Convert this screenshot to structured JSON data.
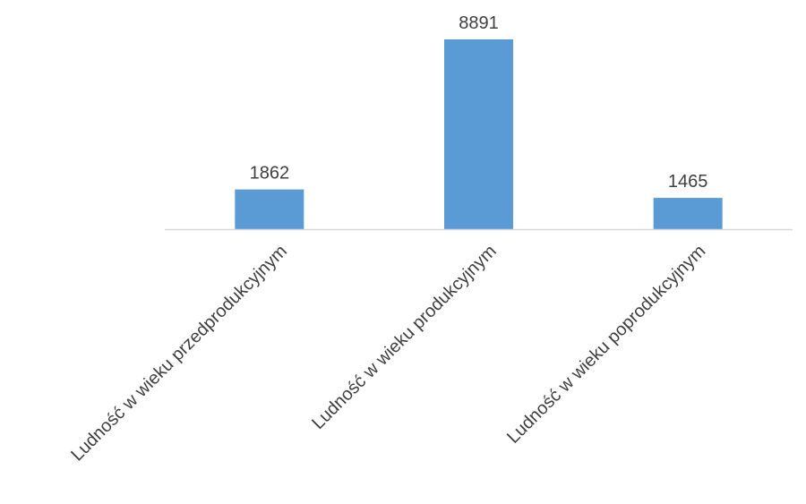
{
  "chart_data": {
    "type": "bar",
    "categories": [
      "Ludność w wieku przedprodukcyjnym",
      "Ludność w wieku produkcyjnym",
      "Ludność w wieku poprodukcyjnym"
    ],
    "values": [
      1862,
      8891,
      1465
    ],
    "value_labels": [
      "1862",
      "8891",
      "1465"
    ],
    "ylim": [
      0,
      9000
    ],
    "grid": false,
    "legend": "none",
    "colors": {
      "bar": "#5b9bd5",
      "axis": "#d9d9d9",
      "text": "#404040"
    }
  }
}
